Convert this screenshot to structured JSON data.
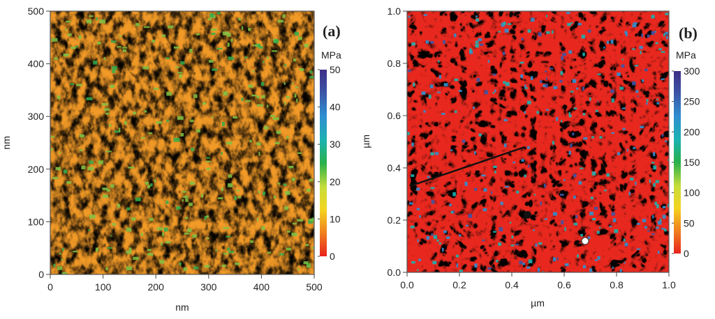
{
  "chart_data": [
    {
      "type": "heatmap",
      "panel_label": "(a)",
      "xlabel": "nm",
      "ylabel": "nm",
      "xlim": [
        0,
        500
      ],
      "ylim": [
        0,
        500
      ],
      "xticks": [
        "0",
        "100",
        "200",
        "300",
        "400",
        "500"
      ],
      "yticks": [
        "0",
        "100",
        "200",
        "300",
        "400",
        "500"
      ],
      "colorbar": {
        "unit": "MPa",
        "range": [
          0,
          50
        ],
        "ticks": [
          "0",
          "10",
          "20",
          "30",
          "40",
          "50"
        ]
      },
      "pattern": "fine granular mottling, mostly orange and yellow with scattered green patches"
    },
    {
      "type": "heatmap",
      "panel_label": "(b)",
      "xlabel": "µm",
      "ylabel": "µm",
      "xlim": [
        0.0,
        1.0
      ],
      "ylim": [
        0.0,
        1.0
      ],
      "xticks": [
        "0.0",
        "0.2",
        "0.4",
        "0.6",
        "0.8",
        "1.0"
      ],
      "yticks": [
        "0.0",
        "0.2",
        "0.4",
        "0.6",
        "0.8",
        "1.0"
      ],
      "colorbar": {
        "unit": "MPa",
        "range": [
          0,
          300
        ],
        "ticks": [
          "0",
          "50",
          "100",
          "150",
          "200",
          "250",
          "300"
        ]
      },
      "pattern": "worm-like lamellar domains, red background with yellow/green/blue domains",
      "annotations": {
        "line": {
          "x": [
            0.01,
            0.45
          ],
          "y": [
            0.33,
            0.48
          ]
        },
        "filled_marker": {
          "x": 0.46,
          "y": 0.22
        },
        "open_marker": {
          "x": 0.68,
          "y": 0.12
        }
      }
    }
  ],
  "colors": {
    "scale": [
      "#e8231e",
      "#f07c1e",
      "#f4b621",
      "#f2e93a",
      "#9fcf3f",
      "#28b04a",
      "#1bb3b0",
      "#2f8fd1",
      "#3c54a6",
      "#3e2f86"
    ]
  }
}
